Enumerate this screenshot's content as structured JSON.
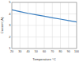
{
  "chart_data": {
    "type": "line",
    "x_label": "Temperature °C",
    "y_label": "Current (A)",
    "x": [
      20,
      30,
      40,
      50,
      60,
      70,
      80,
      90,
      100
    ],
    "series": [
      {
        "name": "Current",
        "color": "#3a7fc1",
        "values": [
          4.35,
          4.2,
          4.05,
          3.92,
          3.8,
          3.67,
          3.55,
          3.42,
          3.3
        ]
      }
    ],
    "xlim": [
      20,
      100
    ],
    "xticks": [
      20,
      30,
      40,
      50,
      60,
      70,
      80,
      90,
      100
    ],
    "ylim": [
      1,
      5
    ],
    "yticks": [
      1,
      2,
      3,
      4,
      5
    ],
    "grid": true
  }
}
